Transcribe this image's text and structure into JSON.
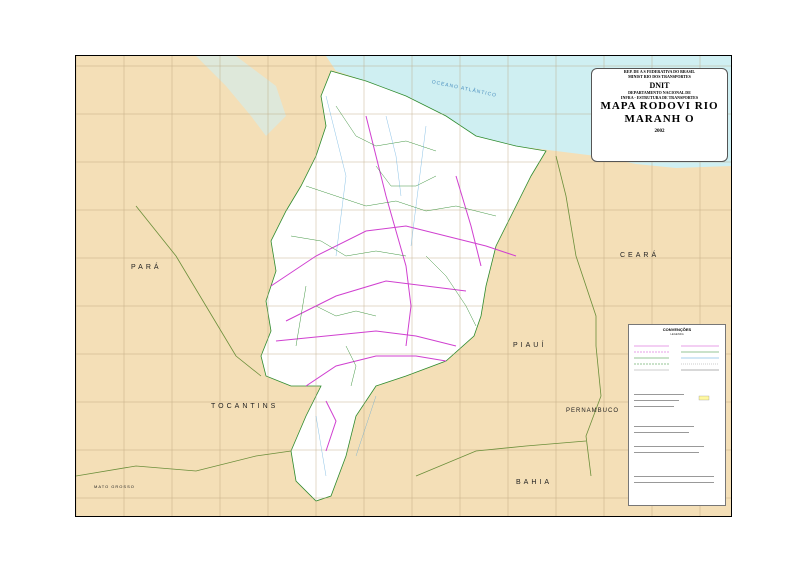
{
  "title_block": {
    "republic": "REP. DE A S FEDERATIVA DO BRASIL",
    "ministry": "MINIST RIO DOS TRANSPORTES",
    "agency": "DNIT",
    "department_line1": "DEPARTAMENTO NACIONAL DE",
    "department_line2": "INFRA - ESTRUTURA DE TRANSPORTES",
    "map_title_line1": "MAPA RODOVI RIO",
    "map_title_line2": "MARANH O",
    "year": "2002"
  },
  "state_labels": {
    "para": "PARÁ",
    "ceara": "CEARÁ",
    "piaui": "PIAUÍ",
    "tocantins": "TOCANTINS",
    "pernambuco": "PERNAMBUCO",
    "bahia": "BAHIA",
    "mato_grosso": "MATO GROSSO"
  },
  "ocean_label": "OCEANO ATLÂNTICO",
  "legend": {
    "title": "CONVENÇÕES",
    "subtitle": "LEGENDA"
  },
  "colors": {
    "neighbor_land": "#f4dfb7",
    "maranhao": "#ffffff",
    "ocean": "#cfeff2",
    "highway": "#d040d0",
    "road": "#2e8b2e",
    "river": "#4aa0d8",
    "grid": "#b8a07a"
  }
}
